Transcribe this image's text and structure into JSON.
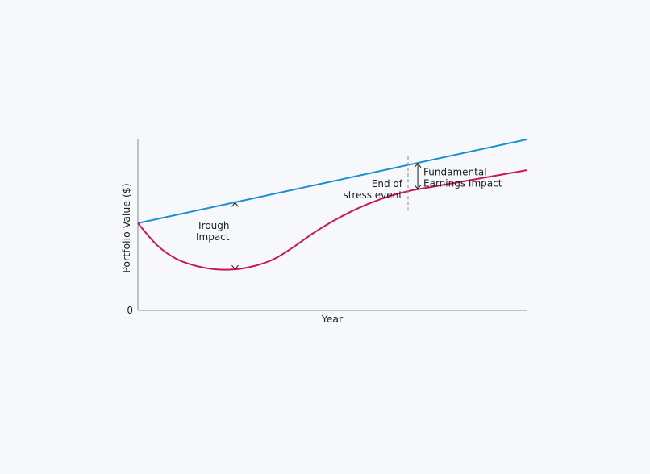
{
  "chart_data": {
    "type": "line",
    "xlabel": "Year",
    "ylabel": "Portfolio Value ($)",
    "xlim": [
      0,
      100
    ],
    "ylim": [
      0,
      100
    ],
    "y_tick_labels": [
      {
        "label": "0",
        "value": 0
      }
    ],
    "grid": false,
    "series": [
      {
        "key": "baseline",
        "color": "#1a8fd0",
        "points": [
          [
            0,
            51
          ],
          [
            100,
            100
          ]
        ]
      },
      {
        "key": "stressed",
        "color": "#c8155f",
        "points": [
          [
            0,
            51
          ],
          [
            5,
            38
          ],
          [
            10,
            30
          ],
          [
            15,
            26
          ],
          [
            20,
            24
          ],
          [
            25,
            24
          ],
          [
            30,
            26
          ],
          [
            35,
            30
          ],
          [
            40,
            37
          ],
          [
            45,
            45
          ],
          [
            50,
            52
          ],
          [
            55,
            58
          ],
          [
            60,
            63
          ],
          [
            65,
            67
          ],
          [
            70,
            70
          ],
          [
            75,
            72
          ],
          [
            80,
            74
          ],
          [
            85,
            76
          ],
          [
            90,
            78
          ],
          [
            95,
            80
          ],
          [
            100,
            82
          ]
        ]
      }
    ],
    "annotations": [
      {
        "key": "trough",
        "lines": [
          "Trough",
          "Impact"
        ],
        "x": 25,
        "y_from": 24,
        "y_to": 63,
        "label_side": "left"
      },
      {
        "key": "fundamental",
        "lines": [
          "Fundamental",
          "Earnings Impact"
        ],
        "x": 72,
        "y_from": 71,
        "y_to": 86,
        "label_side": "right"
      },
      {
        "key": "end_of_stress",
        "lines": [
          "End of",
          "stress event"
        ],
        "x": 69.5,
        "y_from": 57,
        "y_to": 90,
        "label_side": "left",
        "style": "dashed"
      }
    ]
  }
}
